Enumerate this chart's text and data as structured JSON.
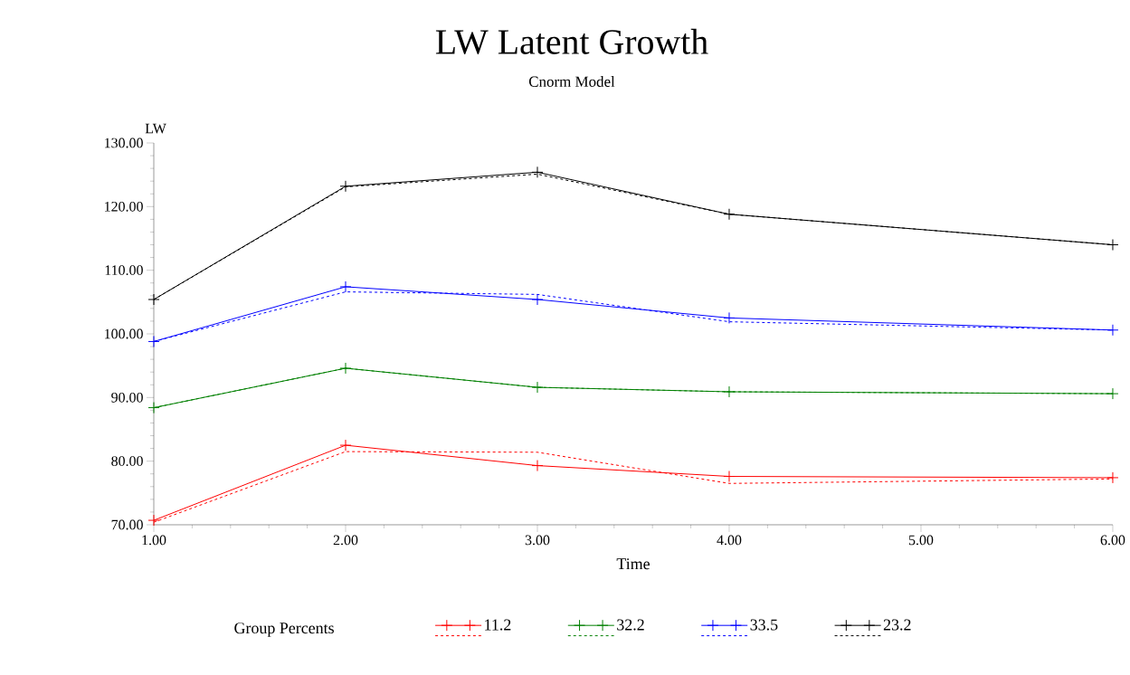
{
  "chart_data": {
    "type": "line",
    "title": "LW Latent Growth",
    "subtitle": "Cnorm Model",
    "xlabel": "Time",
    "ylabel": "LW",
    "legend_title": "Group Percents",
    "x": [
      1,
      2,
      3,
      4,
      6
    ],
    "series": [
      {
        "name": "11.2",
        "color": "#ff0000",
        "marker": "cross",
        "line_style": "solid",
        "values": [
          70.7,
          82.5,
          79.3,
          77.6,
          77.4
        ]
      },
      {
        "color": "#ff0000",
        "marker": "none",
        "line_style": "dashed",
        "values": [
          70.4,
          81.5,
          81.4,
          76.5,
          77.2
        ]
      },
      {
        "name": "32.2",
        "color": "#008000",
        "marker": "cross",
        "line_style": "solid",
        "values": [
          88.4,
          94.6,
          91.6,
          90.9,
          90.6
        ]
      },
      {
        "color": "#008000",
        "marker": "none",
        "line_style": "dashed",
        "values": [
          88.4,
          94.6,
          91.6,
          90.9,
          90.6
        ]
      },
      {
        "name": "33.5",
        "color": "#0000ff",
        "marker": "cross",
        "line_style": "solid",
        "values": [
          98.8,
          107.4,
          105.4,
          102.5,
          100.6
        ]
      },
      {
        "color": "#0000ff",
        "marker": "none",
        "line_style": "dashed",
        "values": [
          98.8,
          106.6,
          106.2,
          101.9,
          100.6
        ]
      },
      {
        "name": "23.2",
        "color": "#000000",
        "marker": "cross",
        "line_style": "solid",
        "values": [
          105.4,
          123.2,
          125.4,
          118.8,
          114.0
        ]
      },
      {
        "color": "#000000",
        "marker": "none",
        "line_style": "dashed",
        "values": [
          105.4,
          123.1,
          125.1,
          118.8,
          114.0
        ]
      }
    ],
    "xlim": [
      1,
      6
    ],
    "ylim": [
      70,
      130
    ],
    "xticks": [
      {
        "value": 1,
        "label": "1.00"
      },
      {
        "value": 2,
        "label": "2.00"
      },
      {
        "value": 3,
        "label": "3.00"
      },
      {
        "value": 4,
        "label": "4.00"
      },
      {
        "value": 5,
        "label": "5.00"
      },
      {
        "value": 6,
        "label": "6.00"
      }
    ],
    "yticks": [
      {
        "value": 70,
        "label": "70.00"
      },
      {
        "value": 80,
        "label": "80.00"
      },
      {
        "value": 90,
        "label": "90.00"
      },
      {
        "value": 100,
        "label": "100.00"
      },
      {
        "value": 110,
        "label": "110.00"
      },
      {
        "value": 120,
        "label": "120.00"
      },
      {
        "value": 130,
        "label": "130.00"
      }
    ],
    "grid": false,
    "legend": "bottom"
  }
}
